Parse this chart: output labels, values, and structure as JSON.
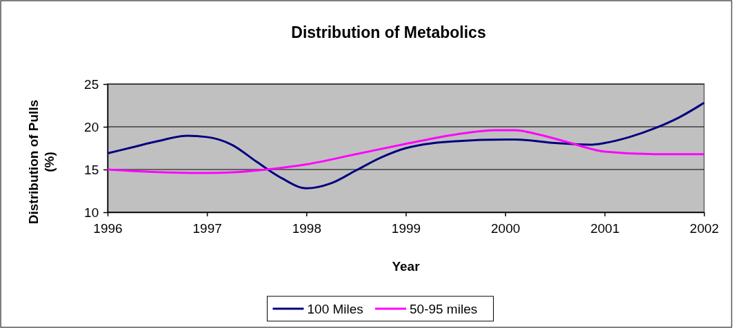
{
  "chart_data": {
    "type": "line",
    "title": "Distribution of Metabolics",
    "xlabel": "Year",
    "ylabel": "Distribution of Pulls (%)",
    "xlim": [
      1996,
      2002
    ],
    "xticks": [
      1996,
      1997,
      1998,
      1999,
      2000,
      2001,
      2002
    ],
    "ylim": [
      10,
      25
    ],
    "yticks": [
      10,
      15,
      20,
      25
    ],
    "grid": "y",
    "legend": "bottom",
    "series": [
      {
        "name": "100 Miles",
        "color": "#000080",
        "x": [
          1996,
          1996.25,
          1996.5,
          1996.8,
          1997,
          1997.25,
          1997.5,
          1997.75,
          1998,
          1998.25,
          1998.5,
          1998.75,
          1999,
          1999.5,
          2000,
          2000.1,
          2000.5,
          2000.85,
          2001,
          2001.25,
          2001.5,
          2001.75,
          2002
        ],
        "values": [
          16.9,
          17.6,
          18.3,
          18.95,
          18.8,
          17.9,
          15.9,
          14.0,
          12.8,
          13.4,
          14.9,
          16.4,
          17.5,
          18.3,
          18.5,
          18.5,
          18.1,
          17.9,
          18.1,
          18.8,
          19.8,
          21.1,
          22.8
        ]
      },
      {
        "name": "50-95 miles",
        "color": "#ff00ff",
        "x": [
          1996,
          1996.5,
          1997,
          1997.3,
          1997.6,
          1998,
          1998.5,
          1999,
          1999.5,
          1999.9,
          2000.1,
          2000.3,
          2000.6,
          2001,
          2001.5,
          2002
        ],
        "values": [
          15.0,
          14.7,
          14.6,
          14.7,
          15.0,
          15.6,
          16.8,
          18.0,
          19.1,
          19.6,
          19.6,
          19.2,
          18.3,
          17.1,
          16.8,
          16.8
        ]
      }
    ]
  }
}
